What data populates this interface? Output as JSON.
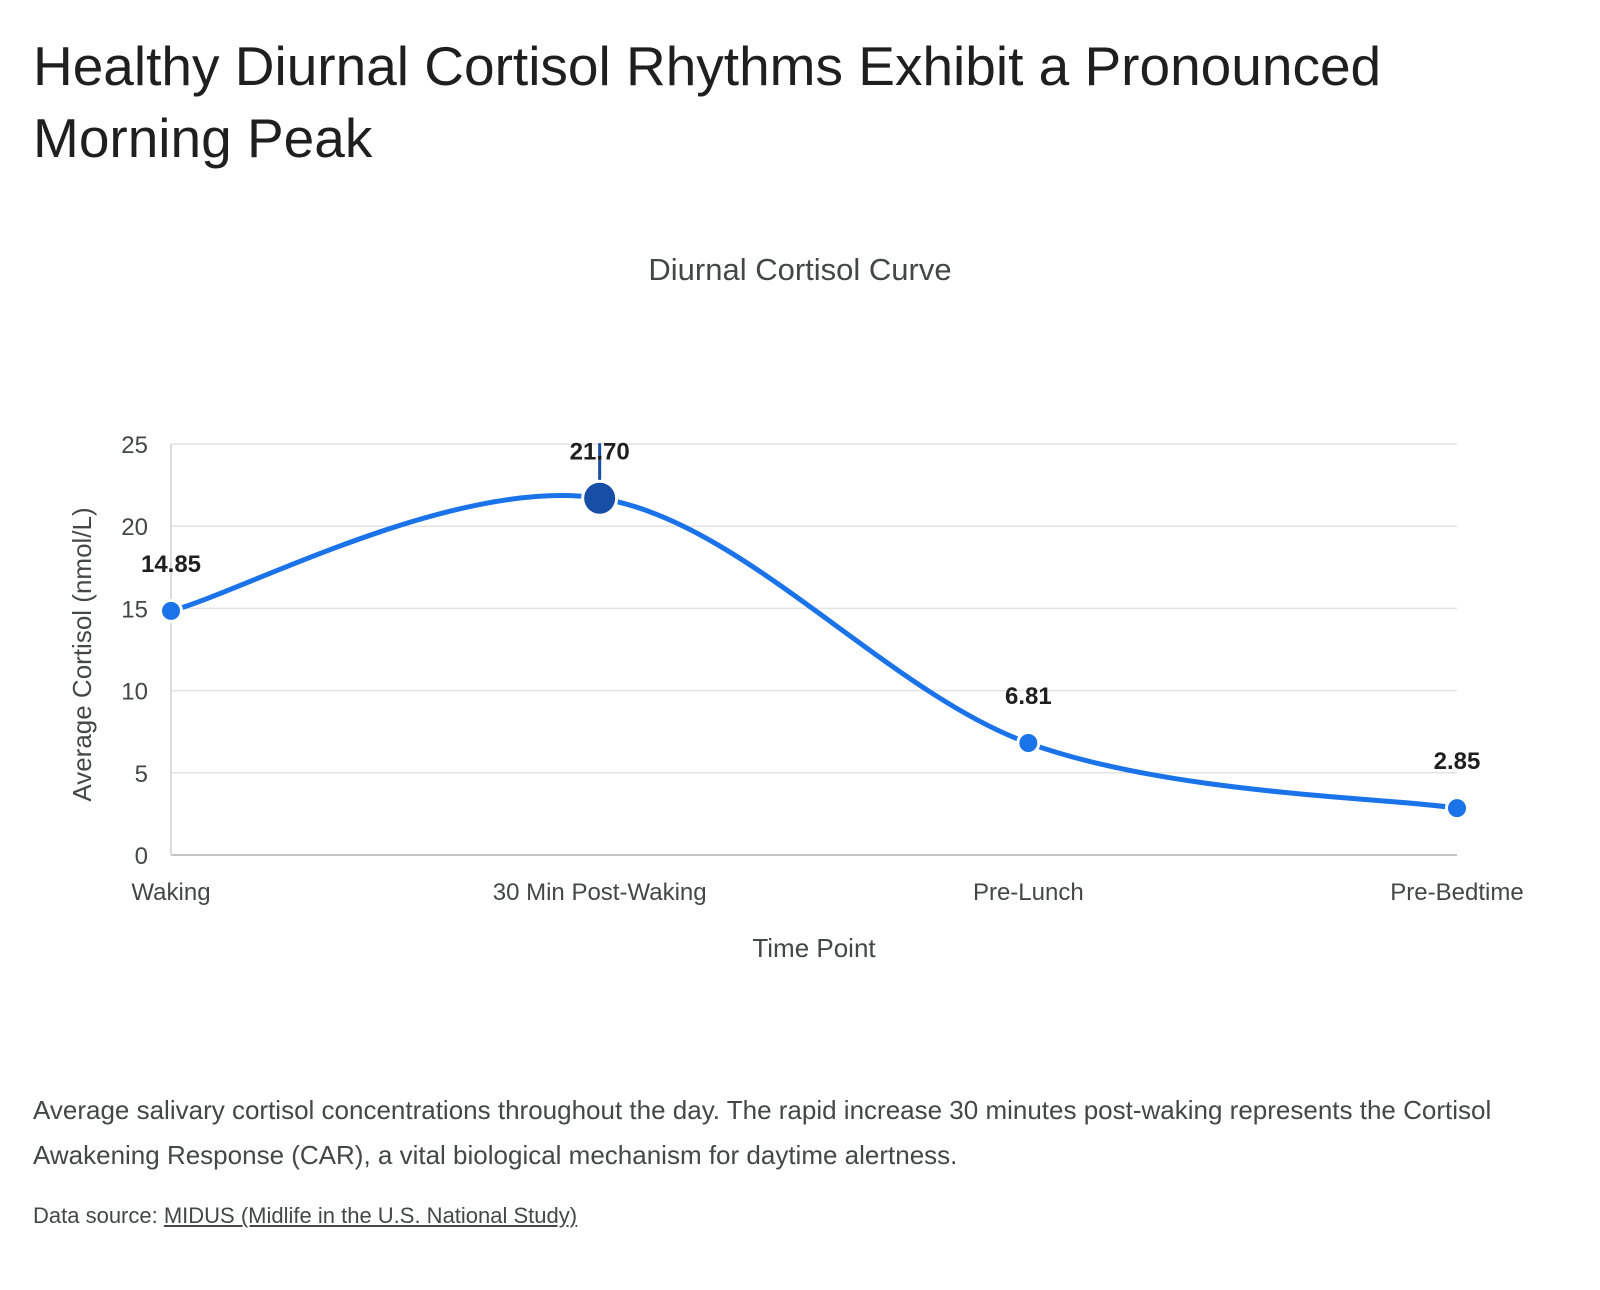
{
  "headline": "Healthy Diurnal Cortisol Rhythms Exhibit a Pronounced Morning Peak",
  "caption": "Average salivary cortisol concentrations throughout the day. The rapid increase 30 minutes post-waking represents the Cortisol Awakening Response (CAR), a vital biological mechanism for daytime alertness.",
  "source": {
    "prefix": "Data source: ",
    "link_text": "MIDUS (Midlife in the U.S. National Study)"
  },
  "chart_data": {
    "type": "line",
    "title": "Diurnal Cortisol Curve",
    "xlabel": "Time Point",
    "ylabel": "Average Cortisol (nmol/L)",
    "categories": [
      "Waking",
      "30 Min Post-Waking",
      "Pre-Lunch",
      "Pre-Bedtime"
    ],
    "series": [
      {
        "values": [
          14.85,
          21.7,
          6.81,
          2.85
        ],
        "data_labels": [
          "14.85",
          "21.70",
          "6.81",
          "2.85"
        ],
        "color": "#1a73e8",
        "highlight_index": 1,
        "highlight_color": "#174ea6",
        "smooth": true
      }
    ],
    "ylim": [
      0,
      25
    ],
    "yticks": [
      0,
      5,
      10,
      15,
      20,
      25
    ],
    "grid": true,
    "legend": "none"
  }
}
